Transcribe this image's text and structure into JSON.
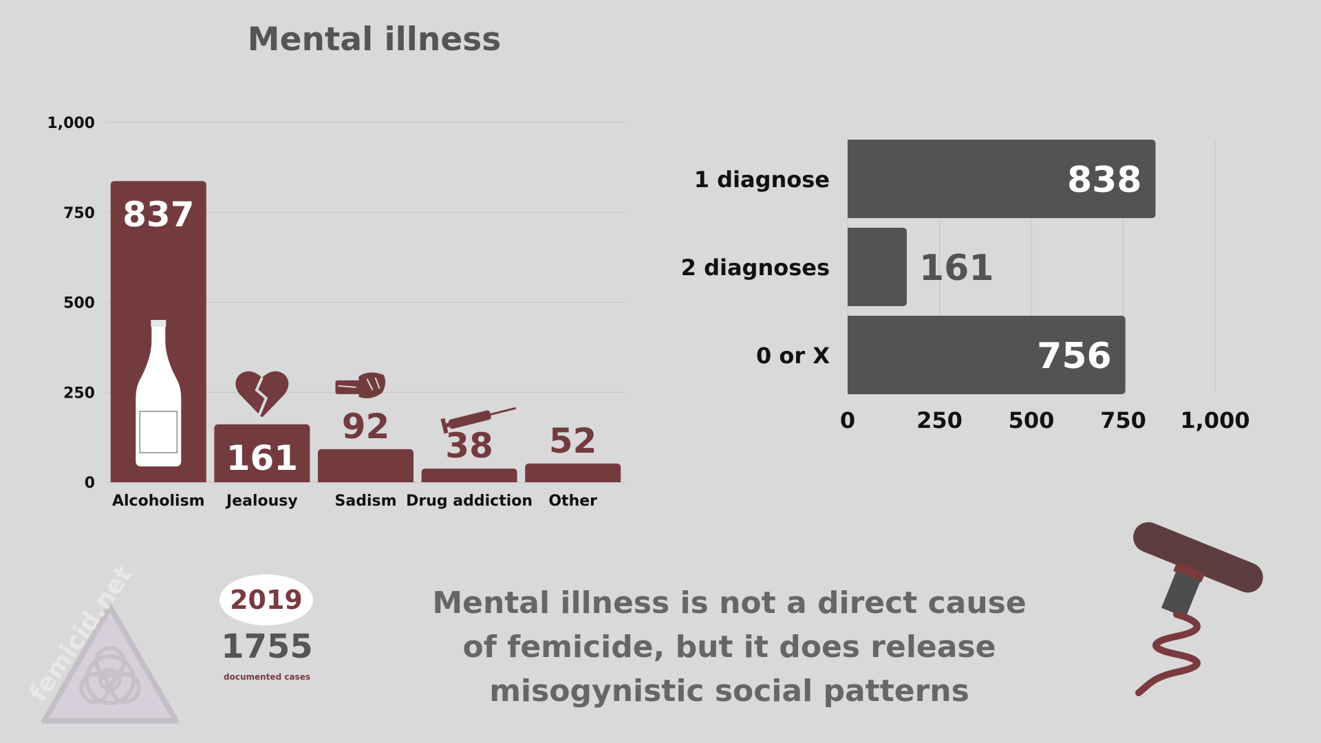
{
  "title": "Mental illness",
  "brand": {
    "watermark_text": "femicid.net",
    "icon": "biohazard-warning-icon"
  },
  "summary": {
    "year": "2019",
    "cases": "1755",
    "cases_label": "documented cases"
  },
  "message": {
    "line1": "Mental illness is not a direct cause",
    "line2": "of femicide, but it does release",
    "line3": "misogynistic social patterns"
  },
  "colors": {
    "background": "#d9d9d9",
    "maroon": "#733b3e",
    "dark_gray": "#535353",
    "text_gray": "#666666"
  },
  "chart_data": [
    {
      "type": "bar",
      "orientation": "vertical",
      "categories": [
        "Alcoholism",
        "Jealousy",
        "Sadism",
        "Drug addiction",
        "Other"
      ],
      "values": [
        837,
        161,
        92,
        38,
        52
      ],
      "value_labels": [
        "837",
        "161",
        "92",
        "38",
        "52"
      ],
      "icons": [
        "wine-bottle-icon",
        "broken-heart-icon",
        "fist-icon",
        "syringe-icon",
        ""
      ],
      "ylim": [
        0,
        1000
      ],
      "yticks": [
        0,
        250,
        500,
        750,
        1000
      ],
      "ytick_labels": [
        "0",
        "250",
        "500",
        "750",
        "1,000"
      ],
      "grid": true,
      "color": "#733b3e"
    },
    {
      "type": "bar",
      "orientation": "horizontal",
      "categories": [
        "1 diagnose",
        "2 diagnoses",
        "0 or X"
      ],
      "values": [
        838,
        161,
        756
      ],
      "value_labels": [
        "838",
        "161",
        "756"
      ],
      "xlim": [
        0,
        1000
      ],
      "xticks": [
        0,
        250,
        500,
        750,
        1000
      ],
      "xtick_labels": [
        "0",
        "250",
        "500",
        "750",
        "1,000"
      ],
      "grid": true,
      "color": "#535353"
    }
  ],
  "decoration": {
    "icon": "corkscrew-icon"
  }
}
